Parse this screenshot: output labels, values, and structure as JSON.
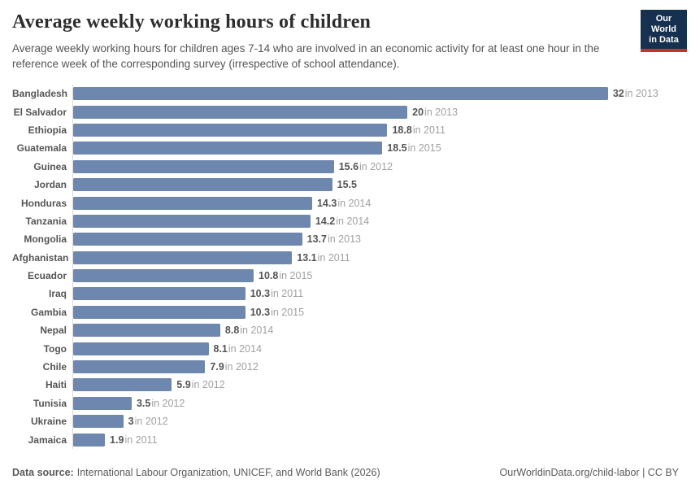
{
  "header": {
    "title": "Average weekly working hours of children",
    "subtitle": "Average weekly working hours for children ages 7-14 who are involved in an economic activity for at least one hour in the reference week of the corresponding survey (irrespective of school attendance).",
    "logo": {
      "line1": "Our World",
      "line2": "in Data"
    }
  },
  "chart_data": {
    "type": "bar",
    "orientation": "horizontal",
    "title": "Average weekly working hours of children",
    "xlabel": "",
    "ylabel": "",
    "xlim": [
      0,
      32
    ],
    "grid": false,
    "legend": "none",
    "bar_color": "#6e87ae",
    "categories": [
      "Bangladesh",
      "El Salvador",
      "Ethiopia",
      "Guatemala",
      "Guinea",
      "Jordan",
      "Honduras",
      "Tanzania",
      "Mongolia",
      "Afghanistan",
      "Ecuador",
      "Iraq",
      "Gambia",
      "Nepal",
      "Togo",
      "Chile",
      "Haiti",
      "Tunisia",
      "Ukraine",
      "Jamaica"
    ],
    "values": [
      32,
      20,
      18.8,
      18.5,
      15.6,
      15.5,
      14.3,
      14.2,
      13.7,
      13.1,
      10.8,
      10.3,
      10.3,
      8.8,
      8.1,
      7.9,
      5.9,
      3.5,
      3,
      1.9
    ],
    "value_labels": [
      "32",
      "20",
      "18.8",
      "18.5",
      "15.6",
      "15.5",
      "14.3",
      "14.2",
      "13.7",
      "13.1",
      "10.8",
      "10.3",
      "10.3",
      "8.8",
      "8.1",
      "7.9",
      "5.9",
      "3.5",
      "3",
      "1.9"
    ],
    "year_labels": [
      "in 2013",
      "in 2013",
      "in 2011",
      "in 2015",
      "in 2012",
      "",
      "in 2014",
      "in 2014",
      "in 2013",
      "in 2011",
      "in 2015",
      "in 2011",
      "in 2015",
      "in 2014",
      "in 2014",
      "in 2012",
      "in 2012",
      "in 2012",
      "in 2012",
      "in 2011"
    ]
  },
  "footer": {
    "source_label": "Data source:",
    "source_text": "International Labour Organization, UNICEF, and World Bank (2026)",
    "credit": "OurWorldinData.org/child-labor | CC BY"
  },
  "colors": {
    "bar": "#6e87ae",
    "axis_line": "#dbdbdb",
    "country_label": "#555555",
    "value_number": "#555555",
    "value_year": "#a1a1a1",
    "title": "#2d2d2d",
    "subtitle": "#555555",
    "footer": "#5b5b5b",
    "logo_navy": "#16304f",
    "logo_red": "#c5342b"
  }
}
